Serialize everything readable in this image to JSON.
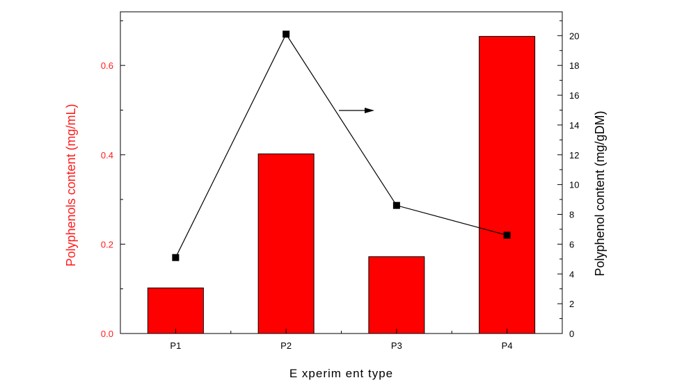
{
  "chart_data": {
    "type": "bar",
    "xlabel": "E xperim ent type",
    "ylabel": "Polyphenols content (mg/mL)",
    "ylabel_right": "Polyphenol content (mg/gDM)",
    "categories": [
      "P1",
      "P2",
      "P3",
      "P4"
    ],
    "series": [
      {
        "axis": "left",
        "type": "bar",
        "values": [
          0.102,
          0.402,
          0.172,
          0.665
        ],
        "color": "#ff0000"
      },
      {
        "axis": "right",
        "type": "line",
        "values": [
          5.1,
          20.1,
          8.6,
          6.6
        ],
        "color": "#000000",
        "marker": "square"
      }
    ],
    "ylim_left": [
      0,
      0.72
    ],
    "yticks_left": [
      "0.0",
      "0.2",
      "0.4",
      "0.6"
    ],
    "ylim_right": [
      0,
      21.6
    ],
    "yticks_right": [
      "0",
      "2",
      "4",
      "6",
      "8",
      "10",
      "12",
      "14",
      "16",
      "18",
      "20"
    ],
    "annotation": "arrow pointing right toward the line series",
    "grid": false,
    "legend": "none"
  }
}
